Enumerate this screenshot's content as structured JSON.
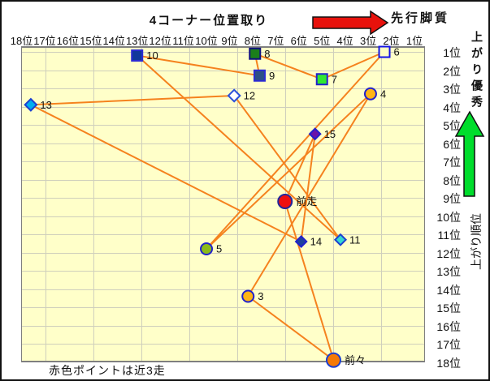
{
  "title": "4コーナー位置取り",
  "annotations": {
    "top_arrow_label": "先行脚質",
    "right_top_label": "上がり優秀",
    "right_bottom_label": "上がり順位",
    "footer_note": "赤色ポイントは近3走"
  },
  "colors": {
    "plot_bg": "#FFFFC9",
    "grid": "#CFCFBC",
    "series_line": "#F5821E",
    "red_arrow": "#E8120C",
    "green_arrow": "#00DD2C",
    "arrow_outline": "#111111",
    "label_text": "#111111"
  },
  "chart_data": {
    "type": "scatter",
    "title": "4コーナー位置取り",
    "x_axis_note": "4-corner position rank, 18位 (left) to 1位 (right)",
    "y_axis_note": "上がり順位 (closing-leg rank), 1位 (top) to 18位 (bottom)",
    "x_ticks": [
      "18位",
      "17位",
      "16位",
      "15位",
      "14位",
      "13位",
      "12位",
      "11位",
      "10位",
      "9位",
      "8位",
      "7位",
      "6位",
      "5位",
      "4位",
      "3位",
      "2位",
      "1位"
    ],
    "y_ticks": [
      "1位",
      "2位",
      "3位",
      "4位",
      "5位",
      "6位",
      "7位",
      "8位",
      "9位",
      "10位",
      "11位",
      "12位",
      "13位",
      "14位",
      "15位",
      "16位",
      "17位",
      "18位"
    ],
    "grid": true,
    "points": [
      {
        "id": "10",
        "x": 13.0,
        "y": 1.2,
        "shape": "square",
        "fill": "#10389B",
        "stroke": "#2B2BD4",
        "size": 13
      },
      {
        "id": "8",
        "x": 7.9,
        "y": 1.1,
        "shape": "square",
        "fill": "#1B7E1B",
        "stroke": "#10107E",
        "size": 13
      },
      {
        "id": "9",
        "x": 7.7,
        "y": 2.3,
        "shape": "square",
        "fill": "#2C4F86",
        "stroke": "#2B2BD4",
        "size": 13
      },
      {
        "id": "6",
        "x": 2.3,
        "y": 1.0,
        "shape": "square",
        "fill": "#FFFFC4",
        "stroke": "#1515E6",
        "size": 13
      },
      {
        "id": "7",
        "x": 5.0,
        "y": 2.5,
        "shape": "square",
        "fill": "#30E830",
        "stroke": "#2121CC",
        "size": 13
      },
      {
        "id": "4",
        "x": 2.9,
        "y": 3.3,
        "shape": "circle",
        "fill": "#FFB414",
        "stroke": "#2121CC",
        "size": 14
      },
      {
        "id": "12",
        "x": 8.8,
        "y": 3.4,
        "shape": "diamond",
        "fill": "#FFFFFF",
        "stroke": "#2A50DC",
        "size": 13
      },
      {
        "id": "13",
        "x": 17.6,
        "y": 3.9,
        "shape": "diamond",
        "fill": "#00AEEF",
        "stroke": "#1B3FD0",
        "size": 13
      },
      {
        "id": "15",
        "x": 5.3,
        "y": 5.5,
        "shape": "diamond",
        "fill": "#6A14A8",
        "stroke": "#2121CC",
        "size": 12
      },
      {
        "id": "前走",
        "x": 6.6,
        "y": 9.2,
        "shape": "circle",
        "fill": "#EE0F0F",
        "stroke": "#20269B",
        "size": 17
      },
      {
        "id": "14",
        "x": 5.9,
        "y": 11.4,
        "shape": "diamond",
        "fill": "#1C3FA0",
        "stroke": "#2121CC",
        "size": 12
      },
      {
        "id": "11",
        "x": 4.2,
        "y": 11.3,
        "shape": "diamond",
        "fill": "#35D8D0",
        "stroke": "#1B3FD0",
        "size": 12
      },
      {
        "id": "5",
        "x": 10.0,
        "y": 11.8,
        "shape": "circle",
        "fill": "#8BBB1A",
        "stroke": "#2121CC",
        "size": 14
      },
      {
        "id": "3",
        "x": 8.2,
        "y": 14.4,
        "shape": "circle",
        "fill": "#FFB414",
        "stroke": "#2121CC",
        "size": 14
      },
      {
        "id": "前々",
        "x": 4.5,
        "y": 17.9,
        "shape": "circle",
        "fill": "#F57905",
        "stroke": "#1B3FD0",
        "size": 17
      }
    ],
    "red_points": [
      "前走",
      "前々"
    ],
    "connection_path": [
      "3",
      "4",
      "5",
      "6",
      "7",
      "8",
      "9",
      "10",
      "11",
      "12",
      "13",
      "14",
      "15",
      "前走",
      "前々",
      "3"
    ],
    "legend_note": "赤色ポイントは近3走"
  }
}
